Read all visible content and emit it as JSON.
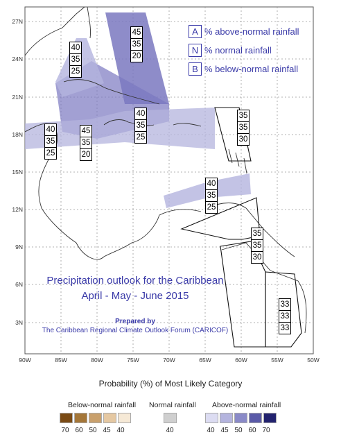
{
  "map": {
    "lat_ticks": [
      "27N",
      "24N",
      "21N",
      "18N",
      "15N",
      "12N",
      "9N",
      "6N",
      "3N"
    ],
    "lon_ticks": [
      "90W",
      "85W",
      "80W",
      "75W",
      "70W",
      "65W",
      "60W",
      "55W",
      "50W"
    ]
  },
  "legend_top": [
    {
      "key": "A",
      "desc": "% above-normal rainfall"
    },
    {
      "key": "N",
      "desc": "% normal rainfall"
    },
    {
      "key": "B",
      "desc": "% below-normal rainfall"
    }
  ],
  "boxes": [
    {
      "id": "bahamas",
      "values": [
        "45",
        "35",
        "20"
      ]
    },
    {
      "id": "cuba-west",
      "values": [
        "40",
        "35",
        "25"
      ]
    },
    {
      "id": "belize",
      "values": [
        "40",
        "35",
        "25"
      ]
    },
    {
      "id": "jamaica",
      "values": [
        "45",
        "35",
        "20"
      ]
    },
    {
      "id": "hispaniola",
      "values": [
        "40",
        "35",
        "25"
      ]
    },
    {
      "id": "leeward",
      "values": [
        "35",
        "35",
        "30"
      ]
    },
    {
      "id": "south-caribbean",
      "values": [
        "40",
        "35",
        "25"
      ]
    },
    {
      "id": "guianas",
      "values": [
        "35",
        "35",
        "30"
      ]
    },
    {
      "id": "suriname",
      "values": [
        "33",
        "33",
        "33"
      ]
    }
  ],
  "title": {
    "line1": "Precipitation outlook for the Caribbean",
    "line2": "April - May - June 2015",
    "prepared": "Prepared by",
    "org": "The Caribbean Regional Climate Outlook Forum (CARICOF)"
  },
  "bottom_legend": {
    "heading": "Probability (%) of Most Likely Category",
    "below": {
      "label": "Below-normal rainfall",
      "values": [
        "70",
        "60",
        "50",
        "45",
        "40"
      ],
      "colors": [
        "#7a4a14",
        "#a47638",
        "#c9a06c",
        "#e5c8a2",
        "#f6e9d6"
      ]
    },
    "normal": {
      "label": "Normal rainfall",
      "values": [
        "40"
      ],
      "colors": [
        "#cfcfcf"
      ]
    },
    "above": {
      "label": "Above-normal rainfall",
      "values": [
        "40",
        "45",
        "50",
        "60",
        "70"
      ],
      "colors": [
        "#dcdcf2",
        "#b4b4de",
        "#8a8ac8",
        "#5a5aa8",
        "#22226e"
      ]
    }
  }
}
